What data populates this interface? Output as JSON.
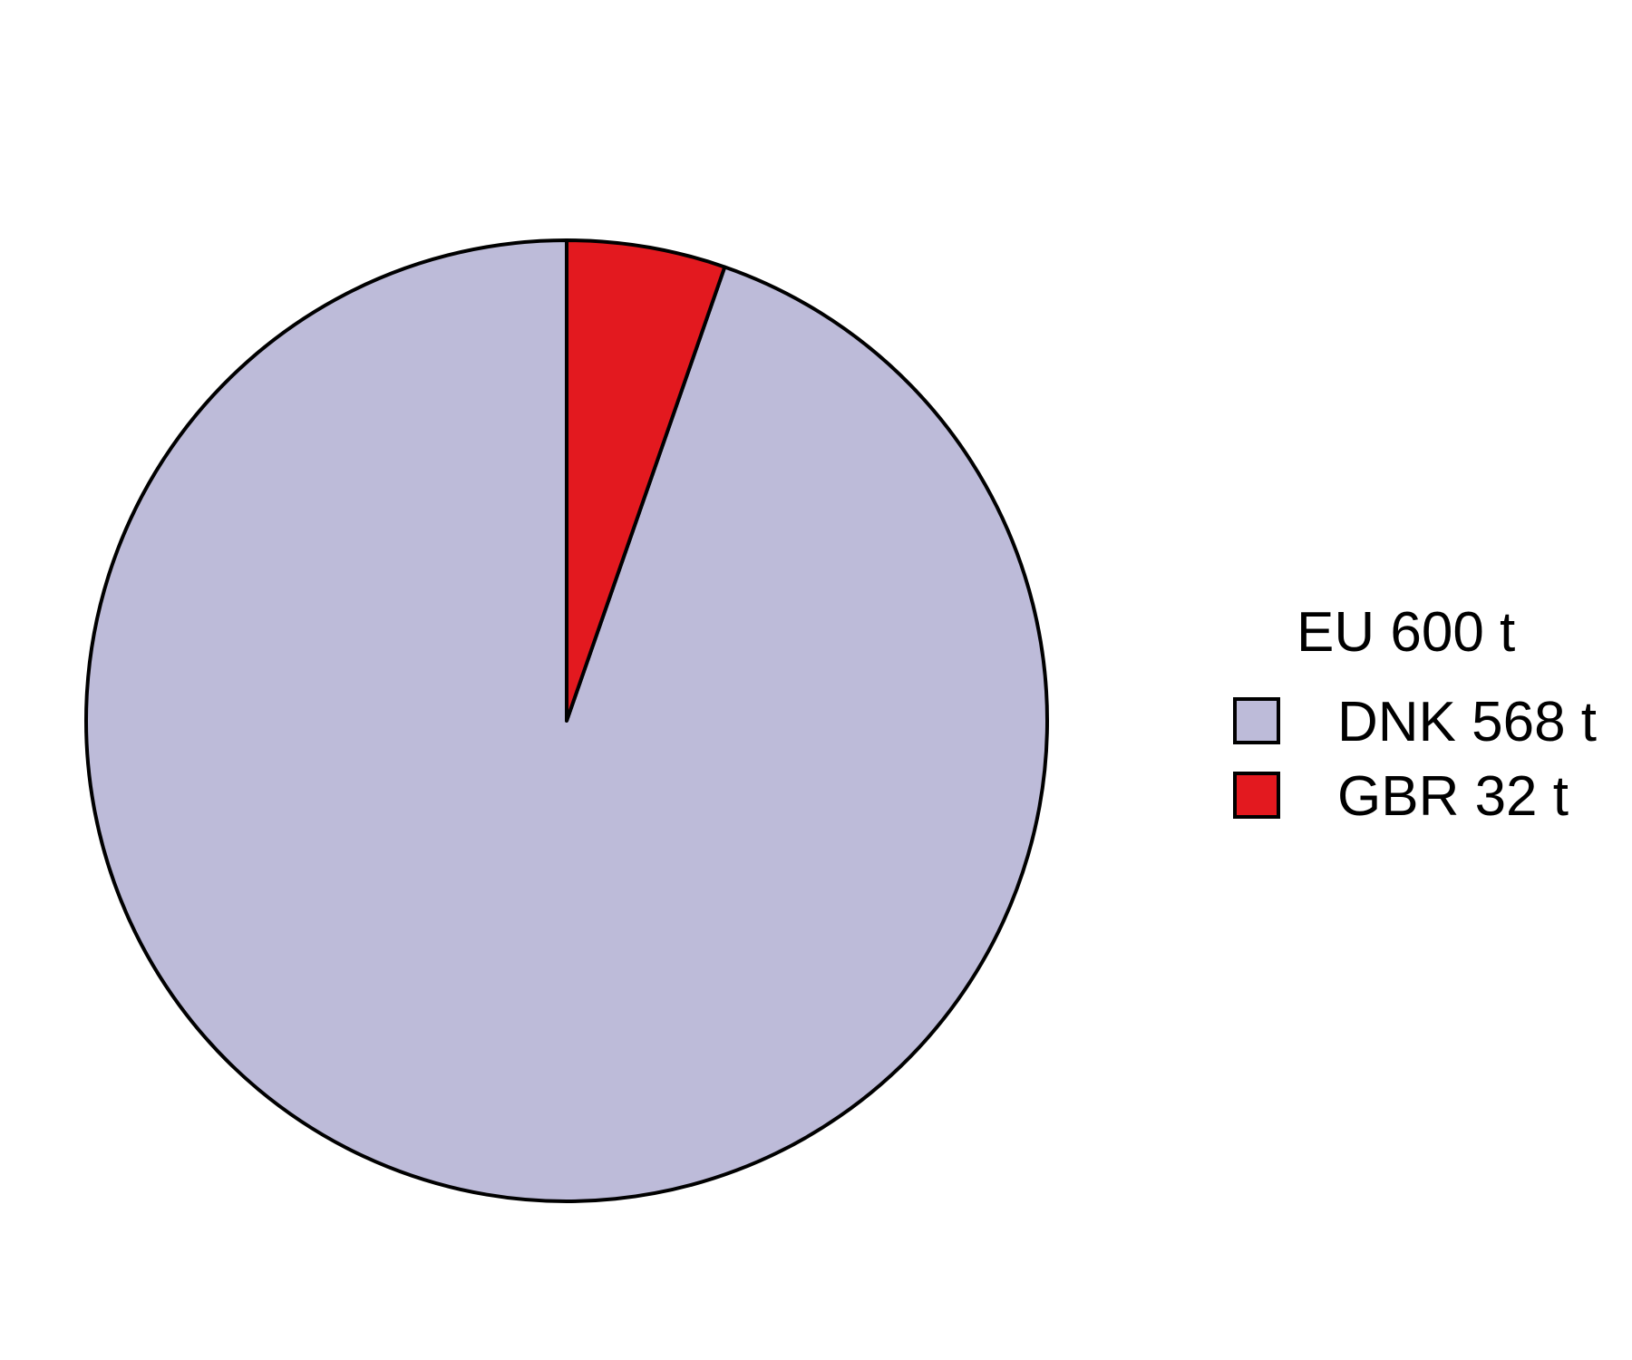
{
  "chart_data": {
    "type": "pie",
    "unit": "t",
    "start_angle": "12 o'clock",
    "direction": "counter-clockwise",
    "slices": [
      {
        "name": "DNK",
        "value": 568,
        "label": "DNK 568 t",
        "color": "#bdbbd9"
      },
      {
        "name": "GBR",
        "value": 32,
        "label": "GBR 32 t",
        "color": "#e3191f"
      }
    ],
    "legend": {
      "title": "EU 600 t",
      "placement": "right"
    },
    "outline_color": "#000000"
  }
}
